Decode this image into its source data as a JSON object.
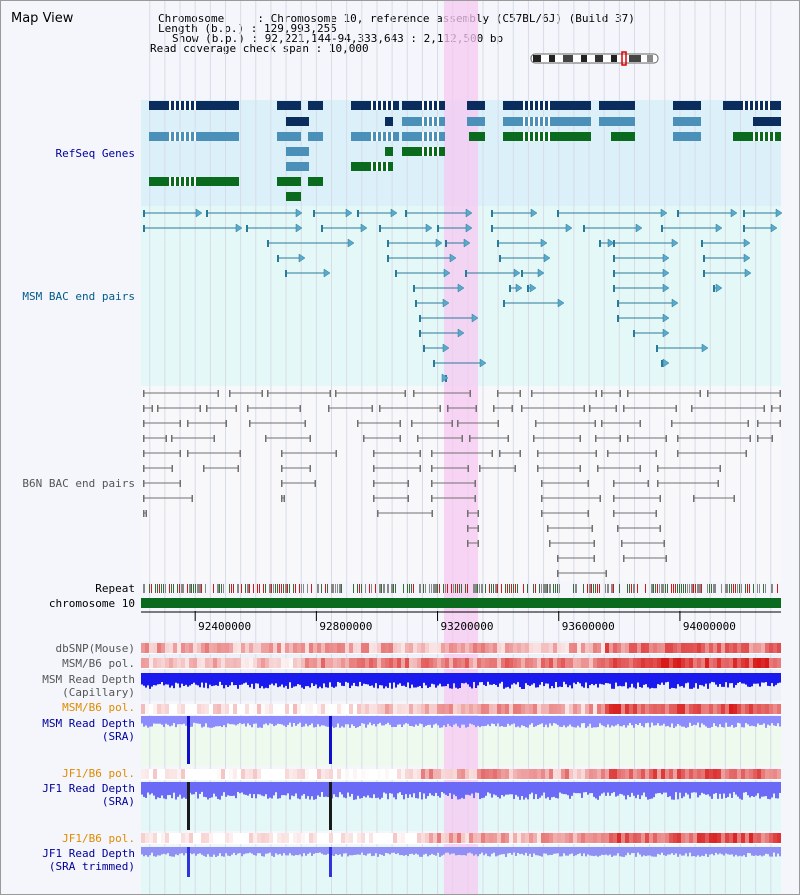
{
  "title": "Map View",
  "info": {
    "chromosome_key": "Chromosome",
    "chromosome_value": "Chromosome 10, reference assembly (C57BL/6J) (Build 37)",
    "length_key": "Length (b.p.)",
    "length_value": "129,993,255",
    "show_key": "Show (b.p.)",
    "show_value": "92,221,144-94,333,643 : 2,112,500 bp",
    "span_key": "Read coverage check span",
    "span_value": "10,000",
    "sep": ":"
  },
  "tracks": {
    "refseq": "RefSeq Genes",
    "msm_bac": "MSM BAC end pairs",
    "b6n_bac": "B6N BAC end pairs",
    "repeat": "Repeat",
    "chromosome": "chromosome 10",
    "dbsnp": "dbSNP(Mouse)",
    "msm_b6_pol_1": "MSM/B6 pol.",
    "msm_depth_cap_1": "MSM Read Depth",
    "msm_depth_cap_2": "(Capillary)",
    "msm_b6_pol_2": "MSM/B6 pol.",
    "msm_depth_sra_1": "MSM Read Depth",
    "msm_depth_sra_2": "(SRA)",
    "jf1_b6_pol_1": "JF1/B6 pol.",
    "jf1_depth_sra_1": "JF1 Read Depth",
    "jf1_depth_sra_2": "(SRA)",
    "jf1_b6_pol_2": "JF1/B6 pol.",
    "jf1_depth_trim_1": "JF1 Read Depth",
    "jf1_depth_trim_2": "(SRA trimmed)"
  },
  "axis": {
    "ticks": [
      {
        "pos": 92400000,
        "label": "92400000"
      },
      {
        "pos": 92800000,
        "label": "92800000"
      },
      {
        "pos": 93200000,
        "label": "93200000"
      },
      {
        "pos": 93600000,
        "label": "93600000"
      },
      {
        "pos": 94000000,
        "label": "94000000"
      }
    ]
  },
  "view": {
    "start": 92221144,
    "end": 94333643
  },
  "highlight": {
    "start": 93221144,
    "end": 93333643
  },
  "colors": {
    "refseq_bg": "#dcf0fa",
    "msm_bg": "#e4f8f8",
    "b6n_bg": "#f8f8fb",
    "highlight": "#f7c8f2",
    "gene_dark": "#0a2d5e",
    "gene_mid": "#4a90b8",
    "gene_green": "#0a6a1e",
    "msm_bac": "#2a7a9a",
    "b6n_bac": "#707070",
    "blue_label": "#000099",
    "orange_label": "#e08a00"
  }
}
